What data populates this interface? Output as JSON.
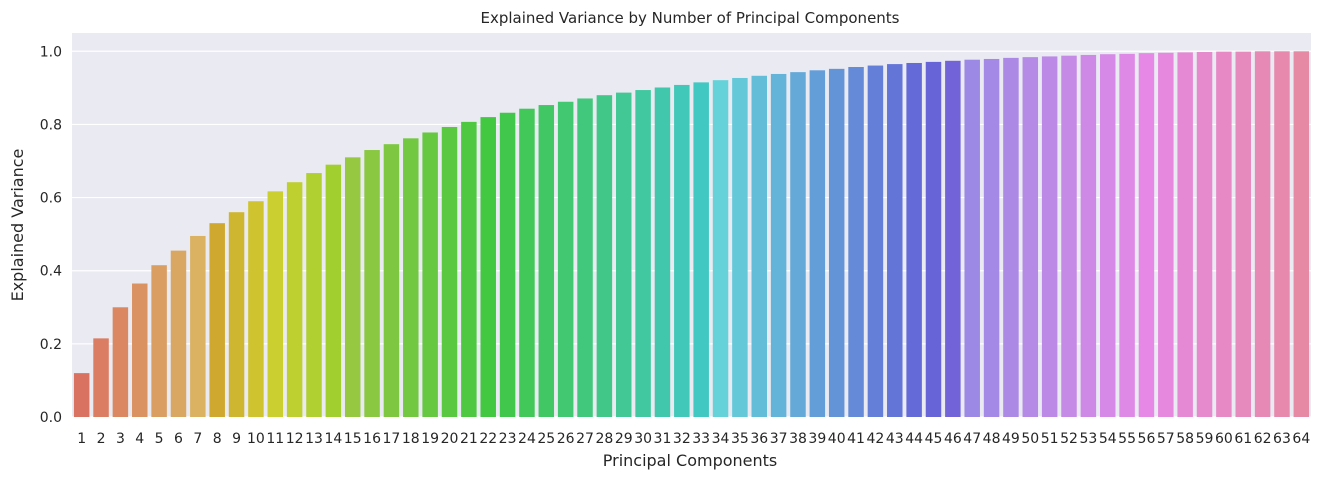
{
  "chart_data": {
    "type": "bar",
    "title": "Explained Variance by Number of Principal Components",
    "xlabel": "Principal Components",
    "ylabel": "Explained Variance",
    "ylim": [
      0,
      1.05
    ],
    "yticks": [
      "0.0",
      "0.2",
      "0.4",
      "0.6",
      "0.8",
      "1.0"
    ],
    "grid": true,
    "background_color": "#eaeaf2",
    "categories": [
      "1",
      "2",
      "3",
      "4",
      "5",
      "6",
      "7",
      "8",
      "9",
      "10",
      "11",
      "12",
      "13",
      "14",
      "15",
      "16",
      "17",
      "18",
      "19",
      "20",
      "21",
      "22",
      "23",
      "24",
      "25",
      "26",
      "27",
      "28",
      "29",
      "30",
      "31",
      "32",
      "33",
      "34",
      "35",
      "36",
      "37",
      "38",
      "39",
      "40",
      "41",
      "42",
      "43",
      "44",
      "45",
      "46",
      "47",
      "48",
      "49",
      "50",
      "51",
      "52",
      "53",
      "54",
      "55",
      "56",
      "57",
      "58",
      "59",
      "60",
      "61",
      "62",
      "63",
      "64"
    ],
    "values": [
      0.12,
      0.215,
      0.3,
      0.365,
      0.415,
      0.455,
      0.495,
      0.53,
      0.56,
      0.59,
      0.617,
      0.642,
      0.667,
      0.69,
      0.71,
      0.73,
      0.746,
      0.762,
      0.778,
      0.793,
      0.807,
      0.82,
      0.832,
      0.843,
      0.853,
      0.862,
      0.871,
      0.88,
      0.887,
      0.894,
      0.901,
      0.908,
      0.915,
      0.921,
      0.927,
      0.933,
      0.938,
      0.943,
      0.948,
      0.952,
      0.957,
      0.961,
      0.965,
      0.968,
      0.971,
      0.974,
      0.977,
      0.979,
      0.982,
      0.984,
      0.986,
      0.988,
      0.99,
      0.992,
      0.993,
      0.995,
      0.996,
      0.997,
      0.998,
      0.999,
      0.999,
      1.0,
      1.0,
      1.0
    ]
  }
}
